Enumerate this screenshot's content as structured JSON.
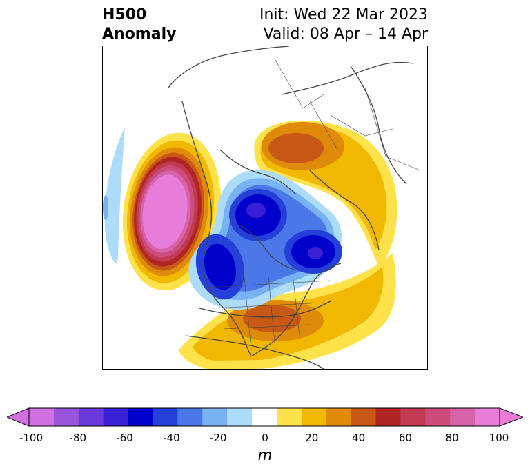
{
  "title": {
    "left_line1": "H500",
    "left_line2": "Anomaly",
    "init": "Init: Wed 22 Mar 2023",
    "valid": "Valid: 08 Apr – 14 Apr"
  },
  "colorbar": {
    "unit": "m",
    "ticks": [
      "-100",
      "-80",
      "-60",
      "-40",
      "-20",
      "0",
      "20",
      "40",
      "60",
      "80",
      "100"
    ],
    "levels": [
      -100,
      -90,
      -80,
      -70,
      -60,
      -50,
      -40,
      -30,
      -20,
      -10,
      10,
      20,
      30,
      40,
      50,
      60,
      70,
      80,
      90,
      100
    ],
    "colors": [
      "#d070e0",
      "#9a55dd",
      "#6a3adf",
      "#3a1fd5",
      "#0000cc",
      "#2540d8",
      "#4a78e8",
      "#78b2f2",
      "#acdcfa",
      "#ffffff",
      "#ffe14a",
      "#f2b800",
      "#e08a0a",
      "#c85815",
      "#b02424",
      "#c23a52",
      "#cc4c7c",
      "#d763ab",
      "#e77dd9"
    ],
    "extend_low": "#d070e0",
    "extend_high": "#e77dd9"
  },
  "map_data": {
    "projection": "north-polar-stereographic",
    "field": "500 hPa geopotential height anomaly",
    "features": [
      {
        "name": "ridge-northeast-pacific",
        "sign": "positive",
        "peak_m": 100
      },
      {
        "name": "trough-northern-canada",
        "sign": "negative",
        "peak_m": -70
      },
      {
        "name": "trough-greenland-atlantic",
        "sign": "negative",
        "peak_m": -70
      },
      {
        "name": "trough-western-north-america",
        "sign": "negative",
        "peak_m": -60
      },
      {
        "name": "ridge-eastern-us",
        "sign": "positive",
        "peak_m": 50
      },
      {
        "name": "ridge-northern-europe-russia",
        "sign": "positive",
        "peak_m": 50
      },
      {
        "name": "weak-trough-central-pacific",
        "sign": "negative",
        "peak_m": -20
      }
    ]
  }
}
